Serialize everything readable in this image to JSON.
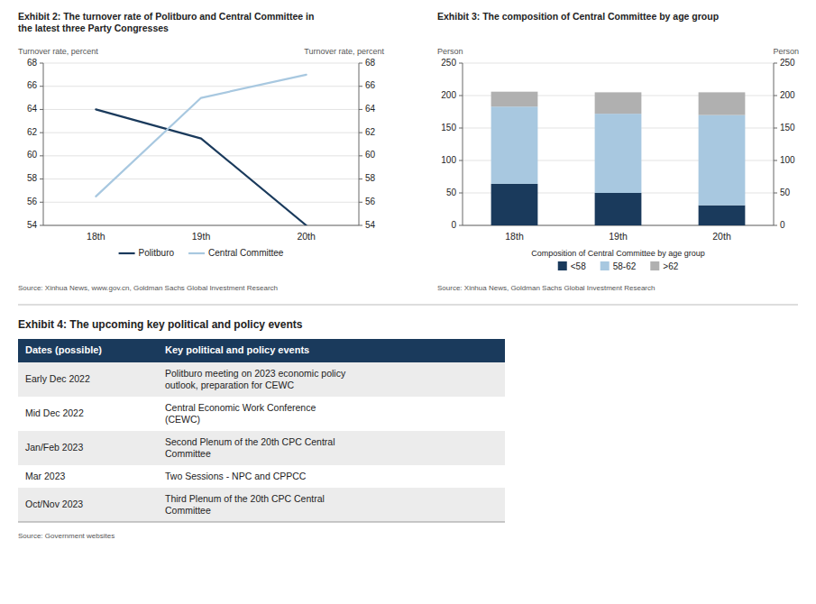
{
  "chart_data": [
    {
      "type": "line",
      "title": "Exhibit 2: The turnover rate of Politburo and Central Committee in\nthe latest three Party Congresses",
      "categories": [
        "18th",
        "19th",
        "20th"
      ],
      "series": [
        {
          "name": "Politburo",
          "color": "#1a3a5c",
          "values": [
            64,
            61.5,
            54
          ]
        },
        {
          "name": "Central Committee",
          "color": "#a8c8e0",
          "values": [
            56.5,
            65,
            67
          ]
        }
      ],
      "ylim": [
        54,
        68
      ],
      "yticks": [
        54,
        56,
        58,
        60,
        62,
        64,
        66,
        68
      ],
      "y2lim": [
        54,
        68
      ],
      "y2ticks": [
        54,
        56,
        58,
        60,
        62,
        64,
        66,
        68
      ],
      "y_label": "Turnover rate, percent",
      "y2_label": "Turnover rate, percent",
      "grid": true,
      "legend": "bottom",
      "source": "Source: Xinhua News, www.gov.cn, Goldman Sachs Global Investment Research"
    },
    {
      "type": "bar",
      "title": "Exhibit 3: The composition of Central Committee by age group",
      "stacked": true,
      "categories": [
        "18th",
        "19th",
        "20th"
      ],
      "series": [
        {
          "name": "<58",
          "color": "#1a3a5c",
          "values": [
            64,
            50,
            31
          ]
        },
        {
          "name": "58-62",
          "color": "#a8c8e0",
          "values": [
            119,
            122,
            139
          ]
        },
        {
          "name": ">62",
          "color": "#b0b0b0",
          "values": [
            23,
            33,
            35
          ]
        }
      ],
      "ylim": [
        0,
        250
      ],
      "yticks": [
        0,
        50,
        100,
        150,
        200,
        250
      ],
      "y2lim": [
        0,
        250
      ],
      "y2ticks": [
        0,
        50,
        100,
        150,
        200,
        250
      ],
      "y_label": "Person",
      "y2_label": "Person",
      "grid": true,
      "legend": "bottom",
      "legend_title": "Composition of Central Committee by age group",
      "source": "Source: Xinhua News, Goldman Sachs Global Investment Research"
    },
    {
      "type": "table",
      "title": "Exhibit 4: The upcoming key political and policy events",
      "columns": [
        "Dates (possible)",
        "Key political and policy events"
      ],
      "rows": [
        [
          "Early Dec 2022",
          "Politburo meeting on 2023 economic policy\noutlook, preparation for CEWC"
        ],
        [
          "Mid Dec 2022",
          "Central Economic Work Conference\n(CEWC)"
        ],
        [
          "Jan/Feb 2023",
          "Second Plenum of the 20th CPC Central\nCommittee"
        ],
        [
          "Mar 2023",
          "Two Sessions - NPC and CPPCC"
        ],
        [
          "Oct/Nov 2023",
          "Third Plenum of the 20th CPC Central\nCommittee"
        ]
      ],
      "source": "Source: Government websites"
    }
  ]
}
